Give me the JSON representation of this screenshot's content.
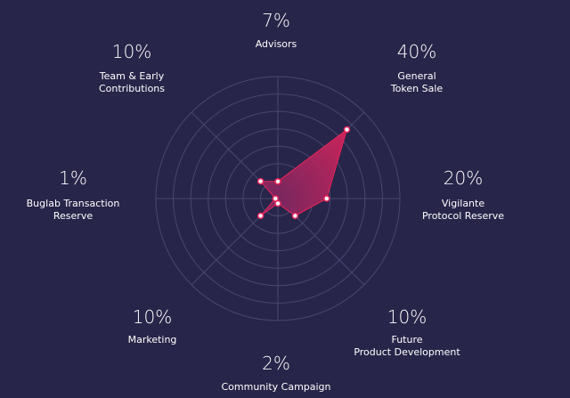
{
  "chart_data": {
    "type": "radar",
    "categories": [
      [
        "Advisors"
      ],
      [
        "General",
        "Token Sale"
      ],
      [
        "Vigilante",
        "Protocol Reserve"
      ],
      [
        "Future",
        "Product Development"
      ],
      [
        "Community Campaign"
      ],
      [
        "Marketing"
      ],
      [
        "Buglab Transaction",
        "Reserve"
      ],
      [
        "Team & Early",
        "Contributions"
      ]
    ],
    "value_labels": [
      "7%",
      "40%",
      "20%",
      "10%",
      "2%",
      "10%",
      "1%",
      "10%"
    ],
    "values": [
      7,
      40,
      20,
      10,
      2,
      10,
      1,
      10
    ],
    "rmax": 50,
    "rings": 7,
    "grid": true,
    "colors": {
      "background": "#28254a",
      "grid": "#4a4770",
      "fill_outer": "#e8245a",
      "fill_inner": "#7e2660",
      "point_fill": "#ffffff",
      "point_stroke": "#e8245a"
    }
  }
}
